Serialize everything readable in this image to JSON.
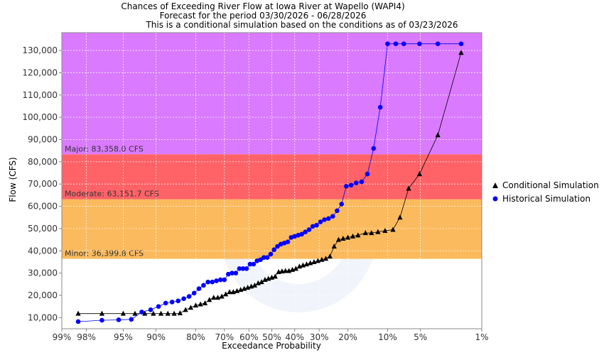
{
  "chart_data": {
    "type": "scatter",
    "title_lines": [
      "Chances of Exceeding River Flow at Iowa River at Wapello (WAPI4)",
      "Forecast for the period 03/30/2026 - 06/28/2026",
      "This is a conditional simulation based on the conditions as of 03/23/2026"
    ],
    "xlabel": "Exceedance Probability",
    "ylabel": "Flow (CFS)",
    "x_scale": "normal-probability",
    "x_ticks": [
      99,
      98,
      95,
      90,
      80,
      70,
      60,
      50,
      40,
      30,
      20,
      10,
      5,
      1
    ],
    "x_tick_labels": [
      "99%",
      "98%",
      "95%",
      "90%",
      "80%",
      "70%",
      "60%",
      "50%",
      "40%",
      "30%",
      "20%",
      "10%",
      "5%",
      "1%"
    ],
    "xlim": [
      99,
      1
    ],
    "y_ticks": [
      10000,
      20000,
      30000,
      40000,
      50000,
      60000,
      70000,
      80000,
      90000,
      100000,
      110000,
      120000,
      130000
    ],
    "y_tick_labels": [
      "10,000",
      "20,000",
      "30,000",
      "40,000",
      "50,000",
      "60,000",
      "70,000",
      "80,000",
      "90,000",
      "100,000",
      "110,000",
      "120,000",
      "130,000"
    ],
    "ylim": [
      5000,
      138000
    ],
    "grid": true,
    "legend_position": "right",
    "bands": [
      {
        "name": "Minor",
        "label": "Minor: 36,399.8 CFS",
        "from": 36399.8,
        "to": 63151.7,
        "color": "#fbb654"
      },
      {
        "name": "Moderate",
        "label": "Moderate: 63,151.7 CFS",
        "from": 63151.7,
        "to": 83358.0,
        "color": "#ff5a5f"
      },
      {
        "name": "Major",
        "label": "Major: 83,358.0 CFS",
        "from": 83358.0,
        "to": 138000,
        "color": "#d873ff"
      }
    ],
    "series": [
      {
        "name": "Conditional Simulation",
        "marker": "triangle",
        "color": "#000000",
        "x": [
          98.4,
          97.0,
          95.0,
          93.5,
          92.0,
          90.5,
          89.0,
          87.5,
          86.0,
          84.5,
          83.0,
          81.5,
          80.0,
          78.5,
          77.0,
          75.5,
          74.0,
          72.5,
          71.0,
          69.5,
          68.0,
          66.5,
          65.0,
          63.5,
          62.0,
          60.5,
          59.0,
          57.5,
          56.0,
          54.5,
          53.0,
          51.5,
          50.0,
          48.5,
          47.0,
          45.5,
          44.0,
          42.5,
          41.0,
          39.5,
          38.0,
          36.5,
          35.0,
          33.5,
          32.0,
          30.5,
          29.0,
          27.5,
          26.0,
          24.5,
          23.0,
          21.5,
          20.0,
          18.5,
          17.0,
          15.0,
          13.5,
          12.0,
          10.5,
          9.0,
          7.8,
          6.5,
          5.1,
          3.3,
          1.8
        ],
        "y": [
          11800,
          11800,
          11800,
          11800,
          11800,
          11800,
          11800,
          11800,
          11800,
          12000,
          13500,
          14500,
          15500,
          16000,
          16500,
          18000,
          19000,
          19000,
          19500,
          20500,
          21500,
          21500,
          22000,
          22500,
          23000,
          23500,
          24000,
          24500,
          25500,
          26000,
          27000,
          27500,
          28000,
          28500,
          30500,
          30800,
          31000,
          31000,
          31500,
          32000,
          33000,
          33500,
          34000,
          34500,
          35000,
          35500,
          36000,
          36500,
          37500,
          42000,
          45000,
          45500,
          46000,
          46500,
          47000,
          48000,
          48000,
          48500,
          49000,
          49500,
          55000,
          68000,
          74500,
          92000,
          129000
        ]
      },
      {
        "name": "Historical Simulation",
        "marker": "circle",
        "color": "#0000ff",
        "x": [
          98.4,
          97.0,
          95.5,
          94.0,
          92.5,
          91.0,
          89.5,
          88.0,
          86.5,
          85.0,
          83.5,
          82.0,
          80.5,
          79.0,
          77.5,
          76.0,
          74.5,
          73.0,
          71.5,
          70.0,
          68.5,
          67.0,
          65.5,
          64.0,
          62.5,
          61.0,
          59.5,
          58.0,
          56.5,
          55.0,
          53.5,
          52.0,
          50.5,
          49.0,
          47.5,
          46.0,
          44.5,
          43.0,
          41.5,
          40.0,
          38.5,
          37.0,
          35.5,
          34.0,
          32.5,
          31.0,
          29.5,
          28.0,
          26.5,
          25.0,
          23.5,
          22.0,
          20.5,
          19.0,
          17.5,
          16.0,
          14.5,
          13.0,
          11.5,
          10.0,
          8.5,
          7.2,
          5.1,
          3.3,
          1.8
        ],
        "y": [
          8200,
          8800,
          9000,
          9200,
          12500,
          13500,
          15000,
          16500,
          17000,
          17500,
          18500,
          19500,
          21000,
          23000,
          24500,
          26000,
          26000,
          26500,
          27000,
          27000,
          29500,
          30000,
          30000,
          32000,
          32000,
          32000,
          34000,
          34000,
          35500,
          36000,
          37000,
          37000,
          38500,
          40500,
          42000,
          43000,
          43500,
          44000,
          46000,
          46500,
          47000,
          47500,
          48500,
          49500,
          51000,
          51500,
          53000,
          54000,
          54500,
          55500,
          58000,
          61000,
          69000,
          69500,
          70500,
          71000,
          74500,
          86000,
          104500,
          133000,
          133000,
          133000,
          133000,
          133000,
          133000
        ]
      }
    ]
  }
}
